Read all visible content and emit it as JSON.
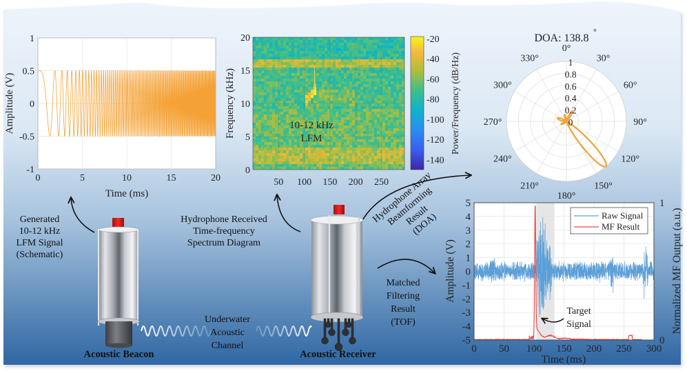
{
  "colors": {
    "orange": "#f4a236",
    "raw_blue": "#5b9fd6",
    "mf_red": "#ee4b4b",
    "panel_top": "#eef4fb",
    "panel_bottom": "#2f67a3",
    "device_red": "#dd1c1c"
  },
  "labels": {
    "generated": [
      "Generated",
      "10-12 kHz",
      "LFM Signal",
      "(Schematic)"
    ],
    "hydrophone_received": [
      "Hydrophone Received",
      "Time-frequency",
      "Spectrum Diagram"
    ],
    "beamforming": [
      "Hydrophone Array",
      "Beamforming",
      "Result",
      "(DOA)"
    ],
    "matched_filtering": [
      "Matched",
      "Filtering",
      "Result",
      "(TOF)"
    ],
    "channel": [
      "Underwater",
      "Acoustic",
      "Channel"
    ],
    "beacon": "Acoustic Beacon",
    "receiver": "Acoustic Receiver"
  },
  "icons": {
    "beacon": "acoustic-beacon-device-icon",
    "receiver": "acoustic-receiver-device-icon",
    "wave": "sine-wave-icon",
    "arrow": "curved-arrow-icon"
  },
  "chart_data": [
    {
      "id": "lfm",
      "type": "line",
      "title": "",
      "xlabel": "Time (ms)",
      "ylabel": "Amplitude (V)",
      "xlim": [
        0,
        20
      ],
      "ylim": [
        -1,
        1
      ],
      "xticks": [
        "0",
        "5",
        "10",
        "15",
        "20"
      ],
      "yticks": [
        "1",
        "0.5",
        "0",
        "-0.5",
        "-1"
      ],
      "amplitude": 0.5,
      "grid": true,
      "series": [
        {
          "name": "LFM chirp",
          "color": "#f4a236"
        }
      ]
    },
    {
      "id": "spectrogram",
      "type": "heatmap",
      "xlabel": "Time (ms)",
      "ylabel": "Frequency (kHz)",
      "xlim": [
        0,
        295
      ],
      "ylim": [
        0,
        20
      ],
      "xticks": [
        "50",
        "100",
        "150",
        "200",
        "250"
      ],
      "yticks": [
        "20",
        "15",
        "10",
        "5",
        "0"
      ],
      "colorbar_label": "Power/Frequency (dB/Hz)",
      "colorbar_ticks": [
        "-20",
        "-40",
        "-60",
        "-80",
        "-100",
        "-120",
        "-140"
      ],
      "clim": [
        -150,
        -18
      ],
      "annotation": [
        "10-12 kHz",
        "LFM"
      ],
      "features": {
        "band_khz": 16,
        "chirp": {
          "t_start_ms": 100,
          "t_end_ms": 120,
          "f_start_khz": 10,
          "f_end_khz": 12
        }
      }
    },
    {
      "id": "doa",
      "type": "line",
      "title": "DOA: 138.8",
      "title_degree": "°",
      "polar": true,
      "angle_ticks": [
        "0°",
        "30°",
        "60°",
        "90°",
        "120°",
        "150°",
        "180°",
        "210°",
        "240°",
        "270°",
        "300°",
        "330°"
      ],
      "r_ticks": [
        "1",
        "0.8",
        "0.6",
        "0.4",
        "0.2",
        "0"
      ],
      "rlim": [
        0,
        1
      ],
      "main_lobe_deg": 138.8,
      "series": [
        {
          "name": "Beam pattern",
          "color": "#f4a236"
        }
      ]
    },
    {
      "id": "tof",
      "type": "line",
      "xlabel": "Time (ms)",
      "ylabel": "Amplitude (V)",
      "y2label": "Normalized MF Output (a.u.)",
      "xlim": [
        0,
        300
      ],
      "ylim": [
        -5,
        5
      ],
      "y2lim": [
        0,
        1
      ],
      "xticks": [
        "0",
        "50",
        "100",
        "150",
        "200",
        "250",
        "300"
      ],
      "yticks": [
        "5",
        "4",
        "3",
        "2",
        "1",
        "0",
        "-1",
        "-2",
        "-3",
        "-4",
        "-5"
      ],
      "y2ticks": [
        "1",
        "0"
      ],
      "highlight_ms": [
        104,
        134
      ],
      "mf_peak_ms": 102,
      "annotation": [
        "Target",
        "Signal"
      ],
      "series": [
        {
          "name": "Raw Signal",
          "color": "#5b9fd6"
        },
        {
          "name": "MF Result",
          "color": "#ee4b4b"
        }
      ]
    }
  ]
}
